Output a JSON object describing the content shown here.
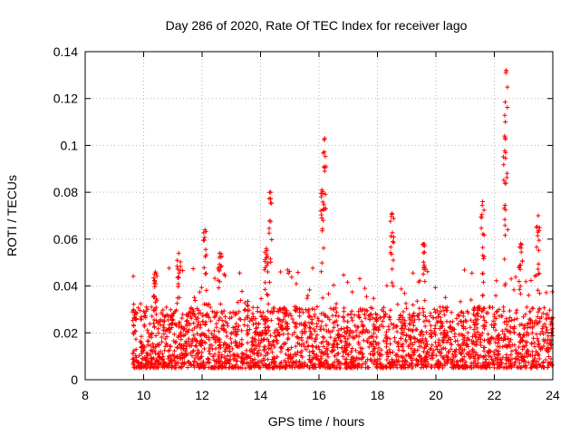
{
  "chart_data": {
    "type": "scatter",
    "title": "Day 286 of 2020, Rate Of TEC Index for receiver lago",
    "xlabel": "GPS time / hours",
    "ylabel": "ROTI / TECUs",
    "xlim": [
      8,
      24
    ],
    "ylim": [
      0,
      0.14
    ],
    "xticks": [
      "8",
      "10",
      "12",
      "14",
      "16",
      "18",
      "20",
      "22",
      "24"
    ],
    "yticks": [
      "0",
      "0.02",
      "0.04",
      "0.06",
      "0.08",
      "0.1",
      "0.12",
      "0.14"
    ],
    "grid": true,
    "marker": "+",
    "color": "#ff0000",
    "x_start": 9.6,
    "x_end": 24,
    "baseline_typical": [
      0.005,
      0.025
    ],
    "peaks": [
      {
        "x": 10.4,
        "y": 0.046
      },
      {
        "x": 11.2,
        "y": 0.054
      },
      {
        "x": 12.1,
        "y": 0.064
      },
      {
        "x": 12.6,
        "y": 0.054
      },
      {
        "x": 14.2,
        "y": 0.056
      },
      {
        "x": 14.35,
        "y": 0.08
      },
      {
        "x": 16.2,
        "y": 0.103
      },
      {
        "x": 16.1,
        "y": 0.081
      },
      {
        "x": 18.5,
        "y": 0.071
      },
      {
        "x": 19.6,
        "y": 0.058
      },
      {
        "x": 21.6,
        "y": 0.076
      },
      {
        "x": 22.4,
        "y": 0.132
      },
      {
        "x": 22.35,
        "y": 0.104
      },
      {
        "x": 22.9,
        "y": 0.058
      },
      {
        "x": 23.5,
        "y": 0.07
      }
    ]
  }
}
